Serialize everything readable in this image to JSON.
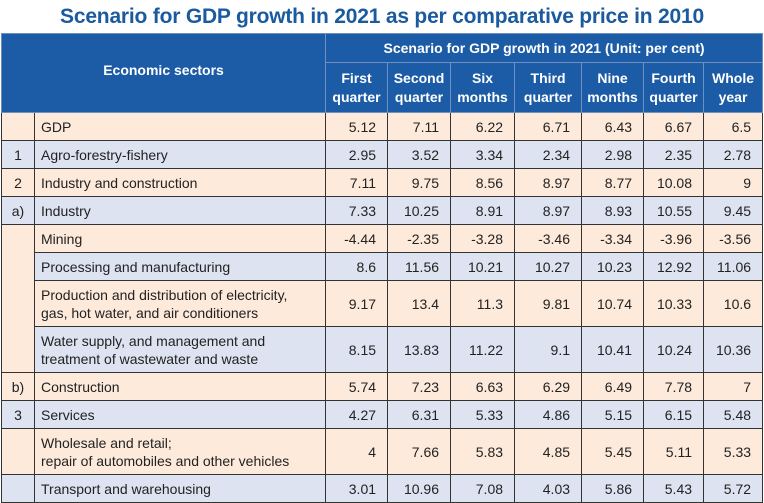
{
  "title": "Scenario for GDP growth in 2021 as per comparative price in 2010",
  "header": {
    "sectors_label": "Economic sectors",
    "group_label": "Scenario for GDP growth in 2021 (Unit: per cent)",
    "columns": [
      [
        "First",
        "quarter"
      ],
      [
        "Second",
        "quarter"
      ],
      [
        "Six",
        "months"
      ],
      [
        "Third",
        "quarter"
      ],
      [
        "Nine",
        "months"
      ],
      [
        "Fourth",
        "quarter"
      ],
      [
        "Whole",
        "year"
      ]
    ]
  },
  "colors": {
    "header_bg": "#1c5ca6",
    "title": "#1a5a9e",
    "row_peach": "#fdeadb",
    "row_blue": "#dde3f1"
  },
  "rows": [
    {
      "index": "",
      "name": [
        "GDP"
      ],
      "values": [
        "5.12",
        "7.11",
        "6.22",
        "6.71",
        "6.43",
        "6.67",
        "6.5"
      ]
    },
    {
      "index": "1",
      "name": [
        "Agro-forestry-fishery"
      ],
      "values": [
        "2.95",
        "3.52",
        "3.34",
        "2.34",
        "2.98",
        "2.35",
        "2.78"
      ]
    },
    {
      "index": "2",
      "name": [
        "Industry and construction"
      ],
      "values": [
        "7.11",
        "9.75",
        "8.56",
        "8.97",
        "8.77",
        "10.08",
        "9"
      ]
    },
    {
      "index": "a)",
      "name": [
        "Industry"
      ],
      "values": [
        "7.33",
        "10.25",
        "8.91",
        "8.97",
        "8.93",
        "10.55",
        "9.45"
      ]
    },
    {
      "index": "",
      "name": [
        "Mining"
      ],
      "values": [
        "-4.44",
        "-2.35",
        "-3.28",
        "-3.46",
        "-3.34",
        "-3.96",
        "-3.56"
      ]
    },
    {
      "index": "",
      "name": [
        "Processing and manufacturing"
      ],
      "values": [
        "8.6",
        "11.56",
        "10.21",
        "10.27",
        "10.23",
        "12.92",
        "11.06"
      ]
    },
    {
      "index": "",
      "name": [
        "Production and distribution of electricity,",
        "gas, hot water, and air conditioners"
      ],
      "values": [
        "9.17",
        "13.4",
        "11.3",
        "9.81",
        "10.74",
        "10.33",
        "10.6"
      ]
    },
    {
      "index": "",
      "name": [
        "Water supply, and management and",
        "treatment of wastewater and waste"
      ],
      "values": [
        "8.15",
        "13.83",
        "11.22",
        "9.1",
        "10.41",
        "10.24",
        "10.36"
      ]
    },
    {
      "index": "b)",
      "name": [
        "Construction"
      ],
      "values": [
        "5.74",
        "7.23",
        "6.63",
        "6.29",
        "6.49",
        "7.78",
        "7"
      ]
    },
    {
      "index": "3",
      "name": [
        "Services"
      ],
      "values": [
        "4.27",
        "6.31",
        "5.33",
        "4.86",
        "5.15",
        "6.15",
        "5.48"
      ]
    },
    {
      "index": "",
      "name": [
        "Wholesale and retail;",
        "repair of automobiles and other vehicles"
      ],
      "values": [
        "4",
        "7.66",
        "5.83",
        "4.85",
        "5.45",
        "5.11",
        "5.33"
      ]
    },
    {
      "index": "",
      "name": [
        "Transport and warehousing"
      ],
      "values": [
        "3.01",
        "10.96",
        "7.08",
        "4.03",
        "5.86",
        "5.43",
        "5.72"
      ]
    }
  ]
}
